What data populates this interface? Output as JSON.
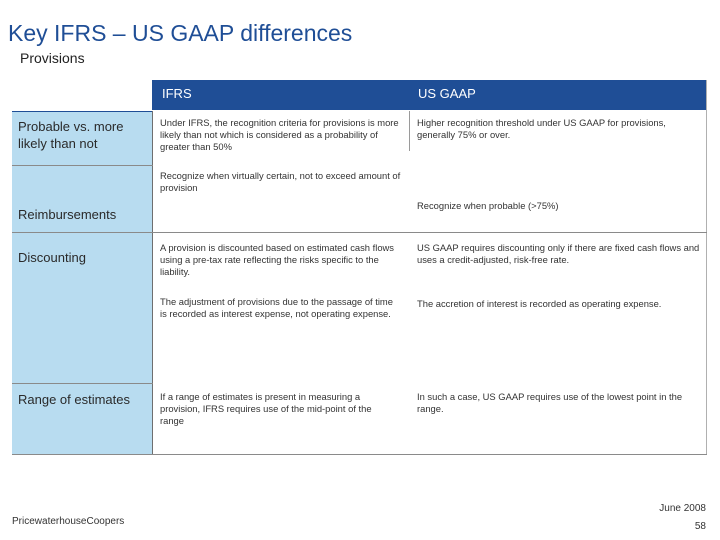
{
  "slide": {
    "title": "Key IFRS – US GAAP differences",
    "subtitle": "Provisions"
  },
  "table": {
    "headers": {
      "ifrs": "IFRS",
      "us_gaap": "US GAAP"
    },
    "rows": {
      "probable": {
        "label": "Probable vs. more likely than not",
        "ifrs": "Under IFRS, the recognition criteria for provisions is more likely than not which is considered as a probability of greater than 50%",
        "us_gaap": "Higher recognition threshold under US GAAP for provisions, generally 75% or over."
      },
      "reimbursements": {
        "label": "Reimbursements",
        "ifrs": "Recognize when virtually certain, not to exceed amount of provision",
        "us_gaap": "Recognize when probable (>75%)"
      },
      "discounting": {
        "label": "Discounting",
        "ifrs_1": "A provision is discounted based on estimated cash flows using a pre-tax rate reflecting the risks specific to the liability.",
        "us_gaap_1": "US GAAP requires discounting only if there are fixed cash flows and uses a credit-adjusted, risk-free rate.",
        "ifrs_2": "The adjustment of provisions due to the passage of time is recorded as interest expense, not operating expense.",
        "us_gaap_2": "The accretion of interest is recorded as operating expense."
      },
      "range": {
        "label": "Range of estimates",
        "ifrs": "If a range of estimates is present in measuring a provision, IFRS requires use of the mid-point of the range",
        "us_gaap": "In such a case, US GAAP requires use of the lowest point in the range."
      }
    }
  },
  "footer": {
    "company": "PricewaterhouseCoopers",
    "date": "June 2008",
    "page": "58"
  },
  "colors": {
    "header_bg": "#1f4e96",
    "label_column_bg": "#b8dcf0",
    "title": "#1f4e96"
  }
}
